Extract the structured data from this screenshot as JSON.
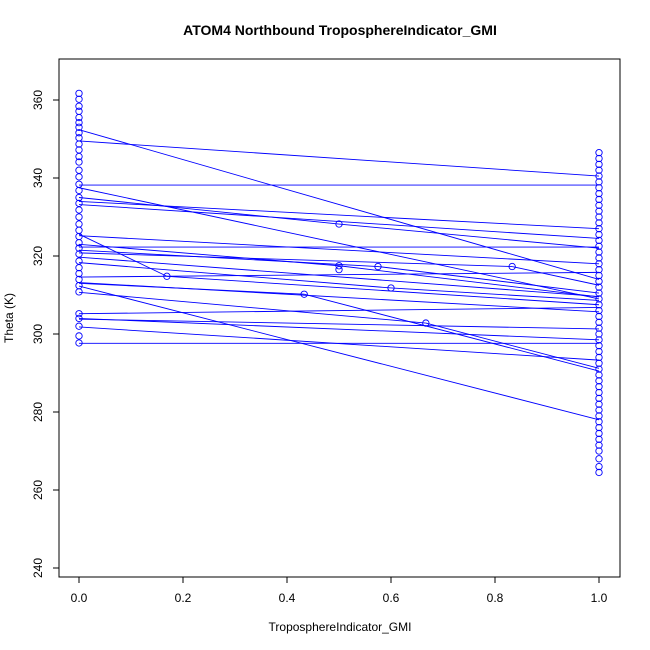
{
  "chart_data": {
    "type": "scatter",
    "title": "ATOM4 Northbound TroposphereIndicator_GMI",
    "xlabel": "TroposphereIndicator_GMI",
    "ylabel": "Theta (K)",
    "xlim": [
      0,
      1
    ],
    "ylim": [
      240,
      362
    ],
    "x_ticks": [
      "0.0",
      "0.2",
      "0.4",
      "0.6",
      "0.8",
      "1.0"
    ],
    "y_ticks": [
      "240",
      "260",
      "280",
      "300",
      "320",
      "340",
      "360"
    ],
    "grid": false,
    "color": "#0000ff",
    "line_color": "#0000ff",
    "segments": [
      [
        0.0,
        352.4,
        1.0,
        314.0
      ],
      [
        0.0,
        349.5,
        1.0,
        340.5
      ],
      [
        0.0,
        338.2,
        1.0,
        338.2
      ],
      [
        0.0,
        337.5,
        1.0,
        309.0
      ],
      [
        0.0,
        335.0,
        0.5,
        328.2
      ],
      [
        0.5,
        328.2,
        1.0,
        322.0
      ],
      [
        0.0,
        334.0,
        1.0,
        327.0
      ],
      [
        0.0,
        333.2,
        1.0,
        324.5
      ],
      [
        0.0,
        325.6,
        0.169,
        314.8
      ],
      [
        0.169,
        314.8,
        1.0,
        307.5
      ],
      [
        0.0,
        325.2,
        1.0,
        318.0
      ],
      [
        0.0,
        323.0,
        0.5,
        317.5
      ],
      [
        0.5,
        317.5,
        1.0,
        309.5
      ],
      [
        0.0,
        322.3,
        1.0,
        322.3
      ],
      [
        0.0,
        321.5,
        0.575,
        317.3
      ],
      [
        0.575,
        317.3,
        1.0,
        310.5
      ],
      [
        0.0,
        320.8,
        0.833,
        317.3
      ],
      [
        0.833,
        317.3,
        1.0,
        312.5
      ],
      [
        0.0,
        319.7,
        1.0,
        309.6
      ],
      [
        0.0,
        318.3,
        0.6,
        311.8
      ],
      [
        0.6,
        311.8,
        1.0,
        308.6
      ],
      [
        0.0,
        314.6,
        1.0,
        315.8
      ],
      [
        0.0,
        313.2,
        1.0,
        305.7
      ],
      [
        0.0,
        313.0,
        0.433,
        310.2
      ],
      [
        0.433,
        310.2,
        1.0,
        290.5
      ],
      [
        0.0,
        312.3,
        1.0,
        278.0
      ],
      [
        0.0,
        310.7,
        0.667,
        302.8
      ],
      [
        0.667,
        302.8,
        1.0,
        291.2
      ],
      [
        0.0,
        305.2,
        1.0,
        306.8
      ],
      [
        0.0,
        304.0,
        1.0,
        298.5
      ],
      [
        0.0,
        303.8,
        1.0,
        301.3
      ],
      [
        0.0,
        301.8,
        1.0,
        293.3
      ],
      [
        0.0,
        297.6,
        1.0,
        297.6
      ]
    ],
    "points": [
      {
        "x": 0.0,
        "y": 361.7
      },
      {
        "x": 0.0,
        "y": 360.2
      },
      {
        "x": 0.0,
        "y": 358.4
      },
      {
        "x": 0.0,
        "y": 357.1
      },
      {
        "x": 0.0,
        "y": 355.5
      },
      {
        "x": 0.0,
        "y": 354.2
      },
      {
        "x": 0.0,
        "y": 353.0
      },
      {
        "x": 0.0,
        "y": 351.6
      },
      {
        "x": 0.0,
        "y": 350.3
      },
      {
        "x": 0.0,
        "y": 348.7
      },
      {
        "x": 0.0,
        "y": 347.2
      },
      {
        "x": 0.0,
        "y": 345.5
      },
      {
        "x": 0.0,
        "y": 344.1
      },
      {
        "x": 0.0,
        "y": 342.0
      },
      {
        "x": 0.0,
        "y": 340.3
      },
      {
        "x": 0.0,
        "y": 338.4
      },
      {
        "x": 0.0,
        "y": 336.8
      },
      {
        "x": 0.0,
        "y": 335.0
      },
      {
        "x": 0.0,
        "y": 333.5
      },
      {
        "x": 0.0,
        "y": 331.8
      },
      {
        "x": 0.0,
        "y": 330.0
      },
      {
        "x": 0.0,
        "y": 328.2
      },
      {
        "x": 0.0,
        "y": 326.6
      },
      {
        "x": 0.0,
        "y": 325.0
      },
      {
        "x": 0.0,
        "y": 323.4
      },
      {
        "x": 0.0,
        "y": 322.0
      },
      {
        "x": 0.0,
        "y": 320.5
      },
      {
        "x": 0.0,
        "y": 318.7
      },
      {
        "x": 0.0,
        "y": 317.0
      },
      {
        "x": 0.0,
        "y": 315.5
      },
      {
        "x": 0.0,
        "y": 314.0
      },
      {
        "x": 0.0,
        "y": 312.4
      },
      {
        "x": 0.0,
        "y": 310.8
      },
      {
        "x": 0.0,
        "y": 305.2
      },
      {
        "x": 0.0,
        "y": 304.0
      },
      {
        "x": 0.0,
        "y": 302.0
      },
      {
        "x": 0.0,
        "y": 299.5
      },
      {
        "x": 0.0,
        "y": 297.7
      },
      {
        "x": 0.169,
        "y": 314.8
      },
      {
        "x": 0.433,
        "y": 310.2
      },
      {
        "x": 0.5,
        "y": 328.2
      },
      {
        "x": 0.5,
        "y": 317.5
      },
      {
        "x": 0.5,
        "y": 316.5
      },
      {
        "x": 0.575,
        "y": 317.3
      },
      {
        "x": 0.6,
        "y": 311.8
      },
      {
        "x": 0.667,
        "y": 302.8
      },
      {
        "x": 0.833,
        "y": 317.3
      },
      {
        "x": 1.0,
        "y": 346.5
      },
      {
        "x": 1.0,
        "y": 345.0
      },
      {
        "x": 1.0,
        "y": 343.5
      },
      {
        "x": 1.0,
        "y": 342.0
      },
      {
        "x": 1.0,
        "y": 340.5
      },
      {
        "x": 1.0,
        "y": 339.0
      },
      {
        "x": 1.0,
        "y": 337.5
      },
      {
        "x": 1.0,
        "y": 336.0
      },
      {
        "x": 1.0,
        "y": 334.5
      },
      {
        "x": 1.0,
        "y": 333.0
      },
      {
        "x": 1.0,
        "y": 331.5
      },
      {
        "x": 1.0,
        "y": 330.0
      },
      {
        "x": 1.0,
        "y": 328.5
      },
      {
        "x": 1.0,
        "y": 327.0
      },
      {
        "x": 1.0,
        "y": 325.5
      },
      {
        "x": 1.0,
        "y": 324.0
      },
      {
        "x": 1.0,
        "y": 322.5
      },
      {
        "x": 1.0,
        "y": 321.0
      },
      {
        "x": 1.0,
        "y": 319.5
      },
      {
        "x": 1.0,
        "y": 318.0
      },
      {
        "x": 1.0,
        "y": 316.5
      },
      {
        "x": 1.0,
        "y": 315.0
      },
      {
        "x": 1.0,
        "y": 313.5
      },
      {
        "x": 1.0,
        "y": 312.0
      },
      {
        "x": 1.0,
        "y": 310.5
      },
      {
        "x": 1.0,
        "y": 309.0
      },
      {
        "x": 1.0,
        "y": 307.5
      },
      {
        "x": 1.0,
        "y": 306.0
      },
      {
        "x": 1.0,
        "y": 304.5
      },
      {
        "x": 1.0,
        "y": 303.0
      },
      {
        "x": 1.0,
        "y": 301.5
      },
      {
        "x": 1.0,
        "y": 300.0
      },
      {
        "x": 1.0,
        "y": 298.5
      },
      {
        "x": 1.0,
        "y": 297.0
      },
      {
        "x": 1.0,
        "y": 295.5
      },
      {
        "x": 1.0,
        "y": 294.0
      },
      {
        "x": 1.0,
        "y": 292.5
      },
      {
        "x": 1.0,
        "y": 291.0
      },
      {
        "x": 1.0,
        "y": 289.5
      },
      {
        "x": 1.0,
        "y": 288.0
      },
      {
        "x": 1.0,
        "y": 286.5
      },
      {
        "x": 1.0,
        "y": 285.0
      },
      {
        "x": 1.0,
        "y": 283.5
      },
      {
        "x": 1.0,
        "y": 282.0
      },
      {
        "x": 1.0,
        "y": 280.5
      },
      {
        "x": 1.0,
        "y": 279.0
      },
      {
        "x": 1.0,
        "y": 277.5
      },
      {
        "x": 1.0,
        "y": 276.0
      },
      {
        "x": 1.0,
        "y": 274.5
      },
      {
        "x": 1.0,
        "y": 273.0
      },
      {
        "x": 1.0,
        "y": 271.5
      },
      {
        "x": 1.0,
        "y": 270.0
      },
      {
        "x": 1.0,
        "y": 268.0
      },
      {
        "x": 1.0,
        "y": 266.0
      },
      {
        "x": 1.0,
        "y": 264.5
      }
    ]
  }
}
